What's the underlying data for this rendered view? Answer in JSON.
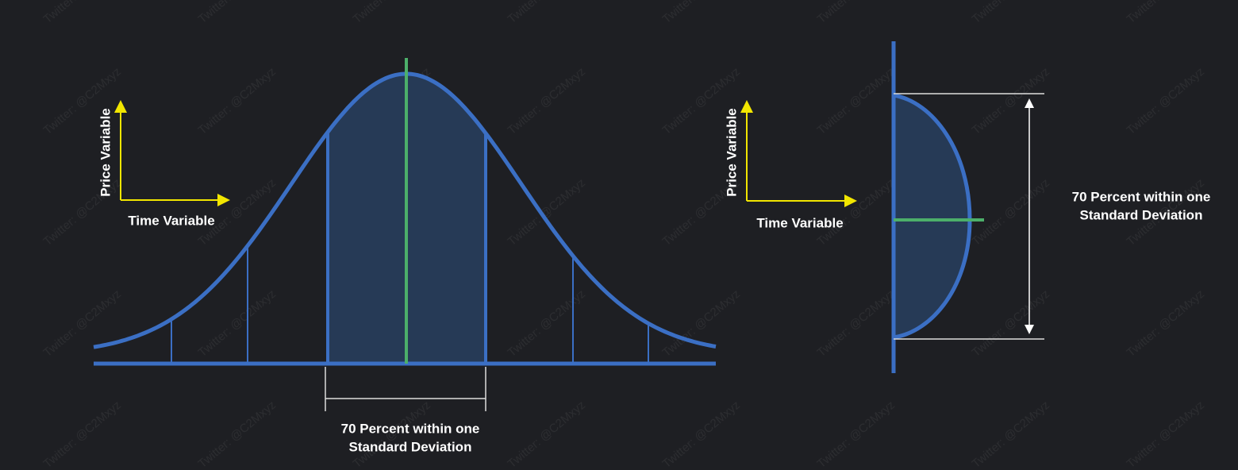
{
  "left_panel": {
    "y_axis_label": "Price Variable",
    "x_axis_label": "Time Variable",
    "annotation": [
      "70 Percent within one",
      "Standard Deviation"
    ]
  },
  "right_panel": {
    "y_axis_label": "Price Variable",
    "x_axis_label": "Time Variable",
    "annotation": [
      "70 Percent within one",
      "Standard Deviation"
    ]
  },
  "watermark": "Twitter: @C2Mxyz"
}
